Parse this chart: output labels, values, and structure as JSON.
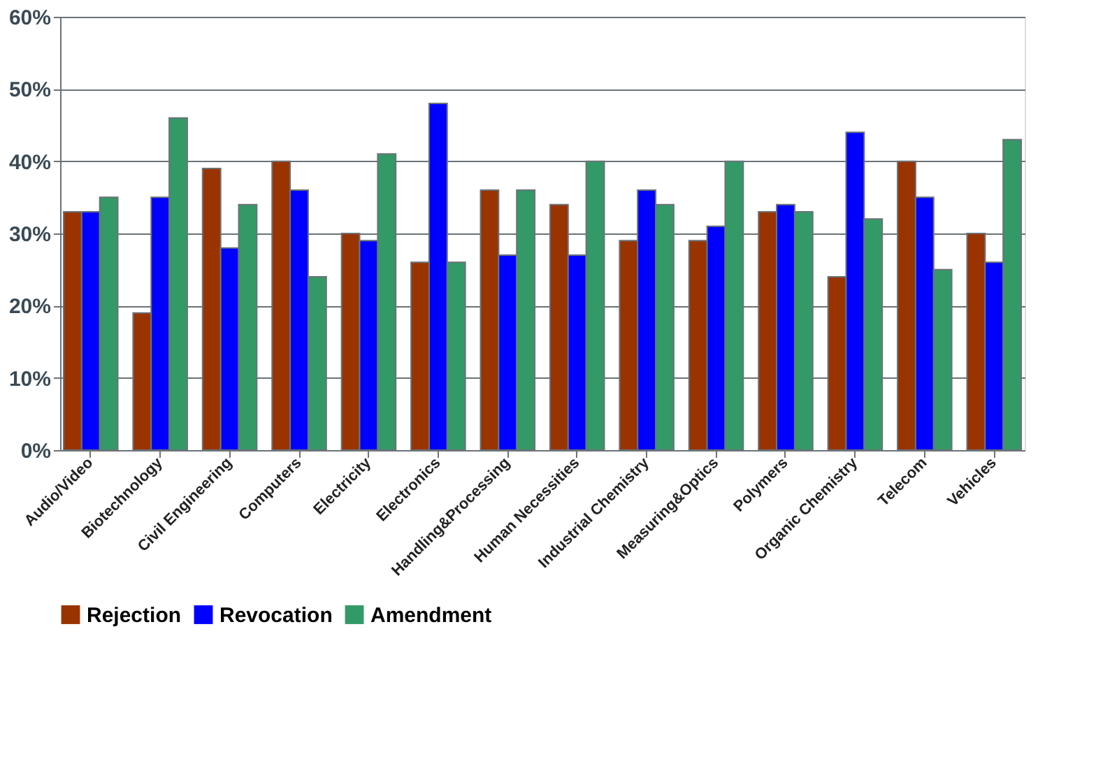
{
  "chart_data": {
    "type": "bar",
    "categories": [
      "Audio/Video",
      "Biotechnology",
      "Civil Engineering",
      "Computers",
      "Electricity",
      "Electronics",
      "Handling&Processing",
      "Human Necessities",
      "Industrial Chemistry",
      "Measuring&Optics",
      "Polymers",
      "Organic Chemistry",
      "Telecom",
      "Vehicles"
    ],
    "series": [
      {
        "name": "Rejection",
        "color": "#993300",
        "values": [
          33,
          19,
          39,
          40,
          30,
          26,
          36,
          34,
          29,
          29,
          33,
          24,
          40,
          30
        ]
      },
      {
        "name": "Revocation",
        "color": "#0000ff",
        "values": [
          33,
          35,
          28,
          36,
          29,
          48,
          27,
          27,
          36,
          31,
          34,
          44,
          35,
          26
        ]
      },
      {
        "name": "Amendment",
        "color": "#339966",
        "values": [
          35,
          46,
          34,
          24,
          41,
          26,
          36,
          40,
          34,
          40,
          33,
          32,
          25,
          43
        ]
      }
    ],
    "ylim": [
      0,
      60
    ],
    "yticks": [
      {
        "value": 0,
        "label": "0%"
      },
      {
        "value": 10,
        "label": "10%"
      },
      {
        "value": 20,
        "label": "20%"
      },
      {
        "value": 30,
        "label": "30%"
      },
      {
        "value": 40,
        "label": "40%"
      },
      {
        "value": 50,
        "label": "50%"
      },
      {
        "value": 60,
        "label": "60%"
      }
    ],
    "grid": "y",
    "legend": "bottom"
  }
}
